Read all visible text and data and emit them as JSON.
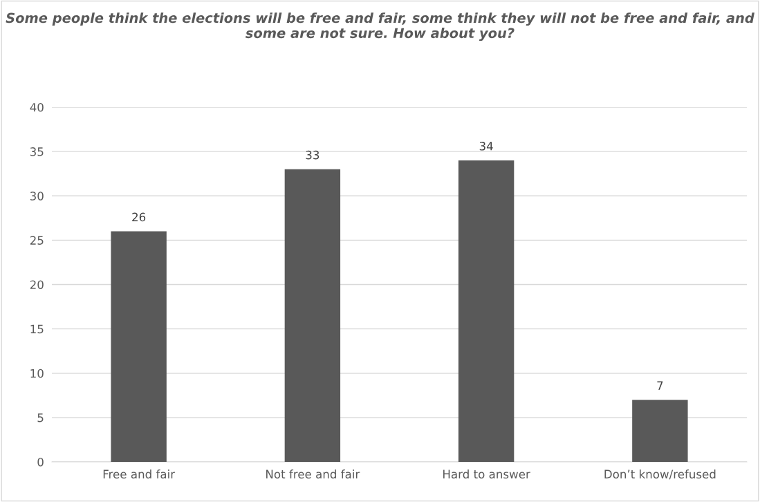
{
  "chart_data": {
    "type": "bar",
    "title": "Some people think the elections will be free and fair, some think they will not be free and fair, and some are not sure. How about you?",
    "categories": [
      "Free and fair",
      "Not free and fair",
      "Hard to answer",
      "Don’t know/refused"
    ],
    "values": [
      26,
      33,
      34,
      7
    ],
    "color": "#595959",
    "ylim": [
      0,
      40
    ],
    "yticks": [
      0,
      5,
      10,
      15,
      20,
      25,
      30,
      35,
      40
    ],
    "grid": "y",
    "data_labels": true
  }
}
